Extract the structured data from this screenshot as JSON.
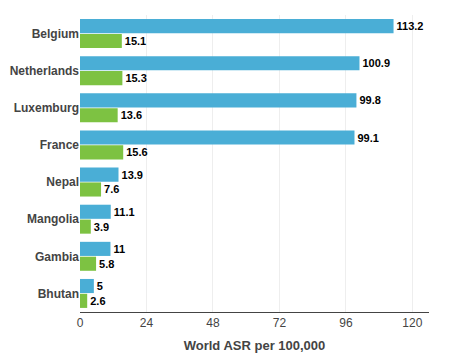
{
  "chart_data": {
    "type": "bar",
    "orientation": "horizontal",
    "categories": [
      "Belgium",
      "Netherlands",
      "Luxemburg",
      "France",
      "Nepal",
      "Mangolia",
      "Gambia",
      "Bhutan"
    ],
    "series": [
      {
        "color": "#4aaed6",
        "values": [
          113.2,
          100.9,
          99.8,
          99.1,
          13.9,
          11.1,
          11,
          5
        ]
      },
      {
        "color": "#7dc242",
        "values": [
          15.1,
          15.3,
          13.6,
          15.6,
          7.6,
          3.9,
          5.8,
          2.6
        ]
      }
    ],
    "xlabel": "World ASR per 100,000",
    "xlim": [
      0,
      126
    ],
    "xticks": [
      0,
      24,
      48,
      72,
      96,
      120
    ],
    "grid": true,
    "data_labels": true
  }
}
